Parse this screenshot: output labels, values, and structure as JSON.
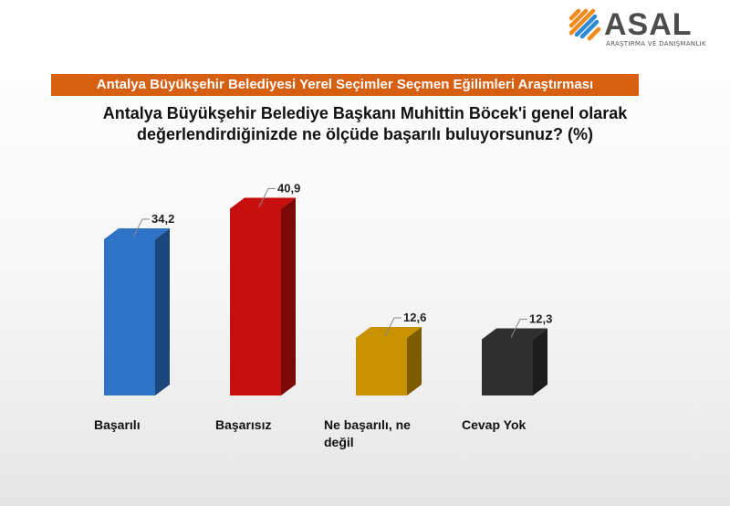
{
  "logo": {
    "name": "ASAL",
    "subtitle": "ARAŞTIRMA VE DANIŞMANLIK",
    "colors": [
      "#f08a1c",
      "#2f8ad6",
      "#f08a1c"
    ]
  },
  "banner": {
    "text": "Antalya Büyükşehir Belediyesi Yerel Seçimler Seçmen Eğilimleri Araştırması",
    "color": "#d75f12"
  },
  "question": {
    "line1": "Antalya Büyükşehir Belediye Başkanı Muhittin Böcek'i genel olarak",
    "line2": "değerlendirdiğinizde ne ölçüde başarılı buluyorsunuz? (%)"
  },
  "chart_data": {
    "type": "bar",
    "style": "3d",
    "categories": [
      "Başarılı",
      "Başarısız",
      "Ne başarılı, ne değil",
      "Cevap Yok"
    ],
    "category_lines": [
      [
        "Başarılı"
      ],
      [
        "Başarısız"
      ],
      [
        "Ne başarılı, ne",
        "değil"
      ],
      [
        "Cevap Yok"
      ]
    ],
    "values": [
      34.2,
      40.9,
      12.6,
      12.3
    ],
    "value_labels": [
      "34,2",
      "40,9",
      "12,6",
      "12,3"
    ],
    "colors": [
      "#2e73c6",
      "#c80f0f",
      "#c99200",
      "#2f2f2f"
    ],
    "ylim": [
      0,
      45
    ],
    "grid": false,
    "legend": "none"
  }
}
